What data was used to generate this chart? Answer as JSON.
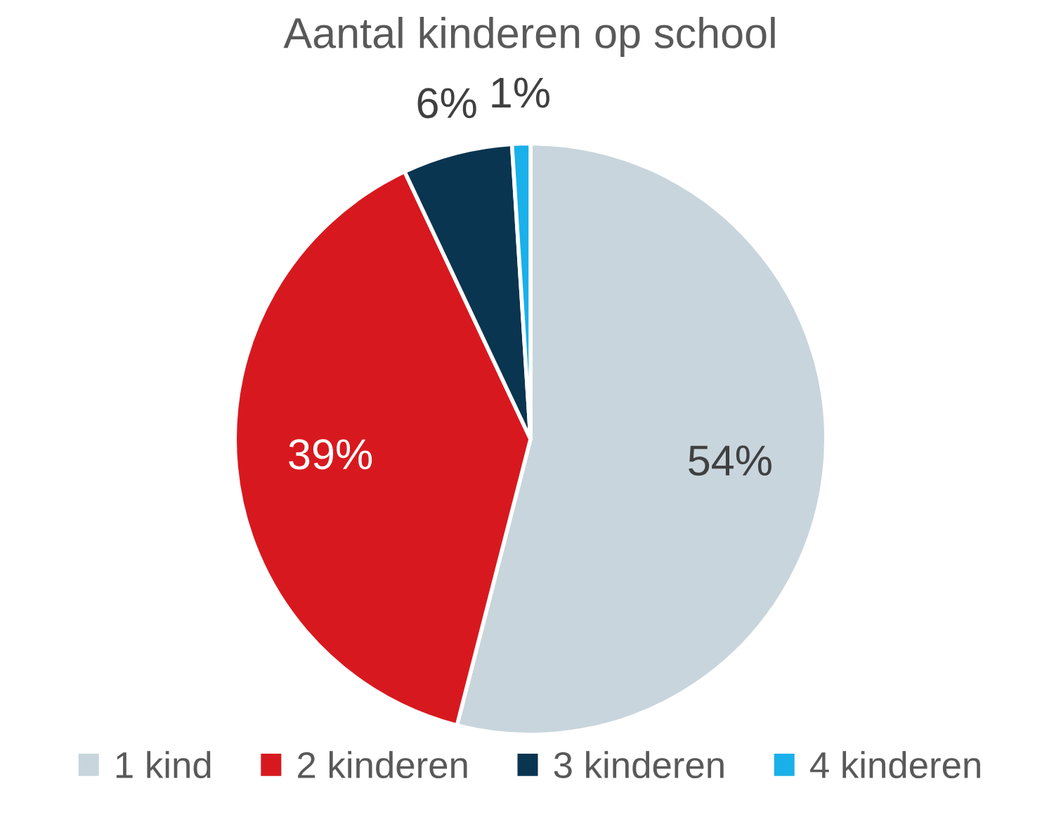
{
  "chart_data": {
    "type": "pie",
    "title": "Aantal kinderen op school",
    "categories": [
      "1 kind",
      "2 kinderen",
      "3 kinderen",
      "4 kinderen"
    ],
    "values": [
      54,
      39,
      6,
      1
    ],
    "value_labels": [
      "54%",
      "39%",
      "6%",
      "1%"
    ],
    "colors": [
      "#c8d5dc",
      "#d7191f",
      "#0a3550",
      "#1ab0ea"
    ],
    "legend": "bottom"
  }
}
